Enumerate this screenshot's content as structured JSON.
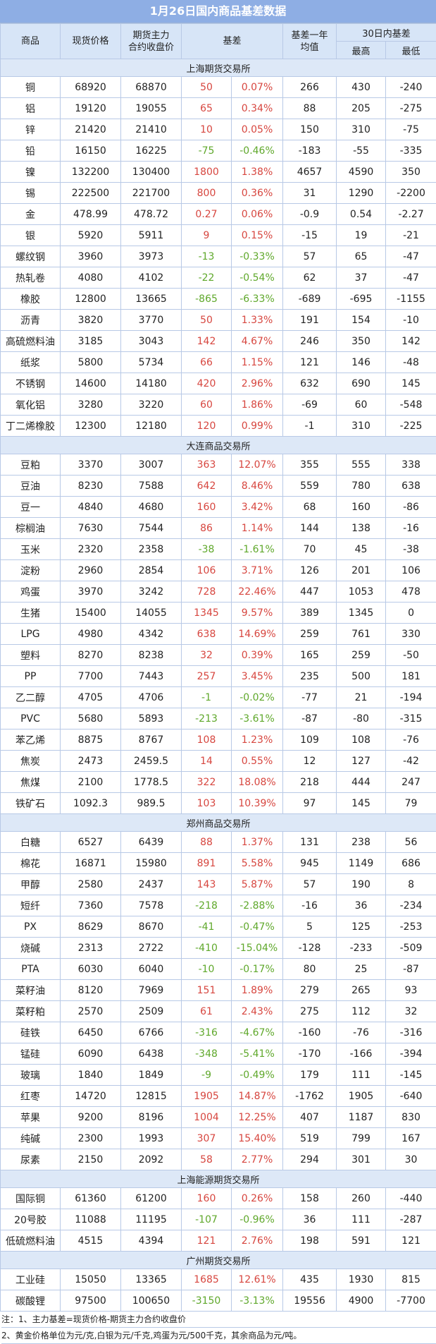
{
  "title": "1月26日国内商品基差数据",
  "headers": {
    "commodity": "商品",
    "spot_price": "现货价格",
    "futures_close_line1": "期货主力",
    "futures_close_line2": "合约收盘价",
    "basis": "基差",
    "basis_year_avg_line1": "基差一年",
    "basis_year_avg_line2": "均值",
    "basis_30d": "30日内基差",
    "high": "最高",
    "low": "最低"
  },
  "sections": [
    {
      "name": "上海期货交易所",
      "rows": [
        [
          "铜",
          "68920",
          "68870",
          "50",
          "0.07%",
          "266",
          "430",
          "-240"
        ],
        [
          "铝",
          "19120",
          "19055",
          "65",
          "0.34%",
          "88",
          "205",
          "-275"
        ],
        [
          "锌",
          "21420",
          "21410",
          "10",
          "0.05%",
          "150",
          "310",
          "-75"
        ],
        [
          "铅",
          "16150",
          "16225",
          "-75",
          "-0.46%",
          "-183",
          "-55",
          "-335"
        ],
        [
          "镍",
          "132200",
          "130400",
          "1800",
          "1.38%",
          "4657",
          "4590",
          "350"
        ],
        [
          "锡",
          "222500",
          "221700",
          "800",
          "0.36%",
          "31",
          "1290",
          "-2200"
        ],
        [
          "金",
          "478.99",
          "478.72",
          "0.27",
          "0.06%",
          "-0.9",
          "0.54",
          "-2.27"
        ],
        [
          "银",
          "5920",
          "5911",
          "9",
          "0.15%",
          "-15",
          "19",
          "-21"
        ],
        [
          "螺纹钢",
          "3960",
          "3973",
          "-13",
          "-0.33%",
          "57",
          "65",
          "-47"
        ],
        [
          "热轧卷",
          "4080",
          "4102",
          "-22",
          "-0.54%",
          "62",
          "37",
          "-47"
        ],
        [
          "橡胶",
          "12800",
          "13665",
          "-865",
          "-6.33%",
          "-689",
          "-695",
          "-1155"
        ],
        [
          "沥青",
          "3820",
          "3770",
          "50",
          "1.33%",
          "191",
          "154",
          "-10"
        ],
        [
          "高硫燃料油",
          "3185",
          "3043",
          "142",
          "4.67%",
          "246",
          "350",
          "142"
        ],
        [
          "纸浆",
          "5800",
          "5734",
          "66",
          "1.15%",
          "121",
          "146",
          "-48"
        ],
        [
          "不锈钢",
          "14600",
          "14180",
          "420",
          "2.96%",
          "632",
          "690",
          "145"
        ],
        [
          "氧化铝",
          "3280",
          "3220",
          "60",
          "1.86%",
          "-69",
          "60",
          "-548"
        ],
        [
          "丁二烯橡胶",
          "12300",
          "12180",
          "120",
          "0.99%",
          "-1",
          "310",
          "-225"
        ]
      ]
    },
    {
      "name": "大连商品交易所",
      "rows": [
        [
          "豆粕",
          "3370",
          "3007",
          "363",
          "12.07%",
          "355",
          "555",
          "338"
        ],
        [
          "豆油",
          "8230",
          "7588",
          "642",
          "8.46%",
          "559",
          "780",
          "638"
        ],
        [
          "豆一",
          "4840",
          "4680",
          "160",
          "3.42%",
          "68",
          "160",
          "-86"
        ],
        [
          "棕榈油",
          "7630",
          "7544",
          "86",
          "1.14%",
          "144",
          "138",
          "-16"
        ],
        [
          "玉米",
          "2320",
          "2358",
          "-38",
          "-1.61%",
          "70",
          "45",
          "-38"
        ],
        [
          "淀粉",
          "2960",
          "2854",
          "106",
          "3.71%",
          "126",
          "201",
          "106"
        ],
        [
          "鸡蛋",
          "3970",
          "3242",
          "728",
          "22.46%",
          "447",
          "1053",
          "478"
        ],
        [
          "生猪",
          "15400",
          "14055",
          "1345",
          "9.57%",
          "389",
          "1345",
          "0"
        ],
        [
          "LPG",
          "4980",
          "4342",
          "638",
          "14.69%",
          "259",
          "761",
          "330"
        ],
        [
          "塑料",
          "8270",
          "8238",
          "32",
          "0.39%",
          "165",
          "259",
          "-50"
        ],
        [
          "PP",
          "7700",
          "7443",
          "257",
          "3.45%",
          "235",
          "500",
          "181"
        ],
        [
          "乙二醇",
          "4705",
          "4706",
          "-1",
          "-0.02%",
          "-77",
          "21",
          "-194"
        ],
        [
          "PVC",
          "5680",
          "5893",
          "-213",
          "-3.61%",
          "-87",
          "-80",
          "-315"
        ],
        [
          "苯乙烯",
          "8875",
          "8767",
          "108",
          "1.23%",
          "109",
          "108",
          "-76"
        ],
        [
          "焦炭",
          "2473",
          "2459.5",
          "14",
          "0.55%",
          "12",
          "127",
          "-42"
        ],
        [
          "焦煤",
          "2100",
          "1778.5",
          "322",
          "18.08%",
          "218",
          "444",
          "247"
        ],
        [
          "铁矿石",
          "1092.3",
          "989.5",
          "103",
          "10.39%",
          "97",
          "145",
          "79"
        ]
      ]
    },
    {
      "name": "郑州商品交易所",
      "rows": [
        [
          "白糖",
          "6527",
          "6439",
          "88",
          "1.37%",
          "131",
          "238",
          "56"
        ],
        [
          "棉花",
          "16871",
          "15980",
          "891",
          "5.58%",
          "945",
          "1149",
          "686"
        ],
        [
          "甲醇",
          "2580",
          "2437",
          "143",
          "5.87%",
          "57",
          "190",
          "8"
        ],
        [
          "短纤",
          "7360",
          "7578",
          "-218",
          "-2.88%",
          "-16",
          "36",
          "-234"
        ],
        [
          "PX",
          "8629",
          "8670",
          "-41",
          "-0.47%",
          "5",
          "125",
          "-253"
        ],
        [
          "烧碱",
          "2313",
          "2722",
          "-410",
          "-15.04%",
          "-128",
          "-233",
          "-509"
        ],
        [
          "PTA",
          "6030",
          "6040",
          "-10",
          "-0.17%",
          "80",
          "25",
          "-87"
        ],
        [
          "菜籽油",
          "8120",
          "7969",
          "151",
          "1.89%",
          "279",
          "265",
          "93"
        ],
        [
          "菜籽粕",
          "2570",
          "2509",
          "61",
          "2.43%",
          "275",
          "112",
          "32"
        ],
        [
          "硅铁",
          "6450",
          "6766",
          "-316",
          "-4.67%",
          "-160",
          "-76",
          "-316"
        ],
        [
          "锰硅",
          "6090",
          "6438",
          "-348",
          "-5.41%",
          "-170",
          "-166",
          "-394"
        ],
        [
          "玻璃",
          "1840",
          "1849",
          "-9",
          "-0.49%",
          "179",
          "111",
          "-145"
        ],
        [
          "红枣",
          "14720",
          "12815",
          "1905",
          "14.87%",
          "-1762",
          "1905",
          "-640"
        ],
        [
          "苹果",
          "9200",
          "8196",
          "1004",
          "12.25%",
          "407",
          "1187",
          "830"
        ],
        [
          "纯碱",
          "2300",
          "1993",
          "307",
          "15.40%",
          "519",
          "799",
          "167"
        ],
        [
          "尿素",
          "2150",
          "2092",
          "58",
          "2.77%",
          "294",
          "301",
          "30"
        ]
      ]
    },
    {
      "name": "上海能源期货交易所",
      "rows": [
        [
          "国际铜",
          "61360",
          "61200",
          "160",
          "0.26%",
          "158",
          "260",
          "-440"
        ],
        [
          "20号胶",
          "11088",
          "11195",
          "-107",
          "-0.96%",
          "36",
          "111",
          "-287"
        ],
        [
          "低硫燃料油",
          "4515",
          "4394",
          "121",
          "2.76%",
          "198",
          "591",
          "121"
        ]
      ]
    },
    {
      "name": "广州期货交易所",
      "rows": [
        [
          "工业硅",
          "15050",
          "13365",
          "1685",
          "12.61%",
          "435",
          "1930",
          "815"
        ],
        [
          "碳酸锂",
          "97500",
          "100650",
          "-3150",
          "-3.13%",
          "19556",
          "4900",
          "-7700"
        ]
      ]
    }
  ],
  "notes": [
    "注：1、主力基差=现货价格-期货主力合约收盘价",
    "2、黄金价格单位为元/克,白银为元/千克,鸡蛋为元/500千克，其余商品为元/吨。"
  ],
  "colors": {
    "positive": "#d7463f",
    "negative": "#5fa82b",
    "header_bg": "#d7e5f7",
    "title_bg": "#8eaee4"
  }
}
